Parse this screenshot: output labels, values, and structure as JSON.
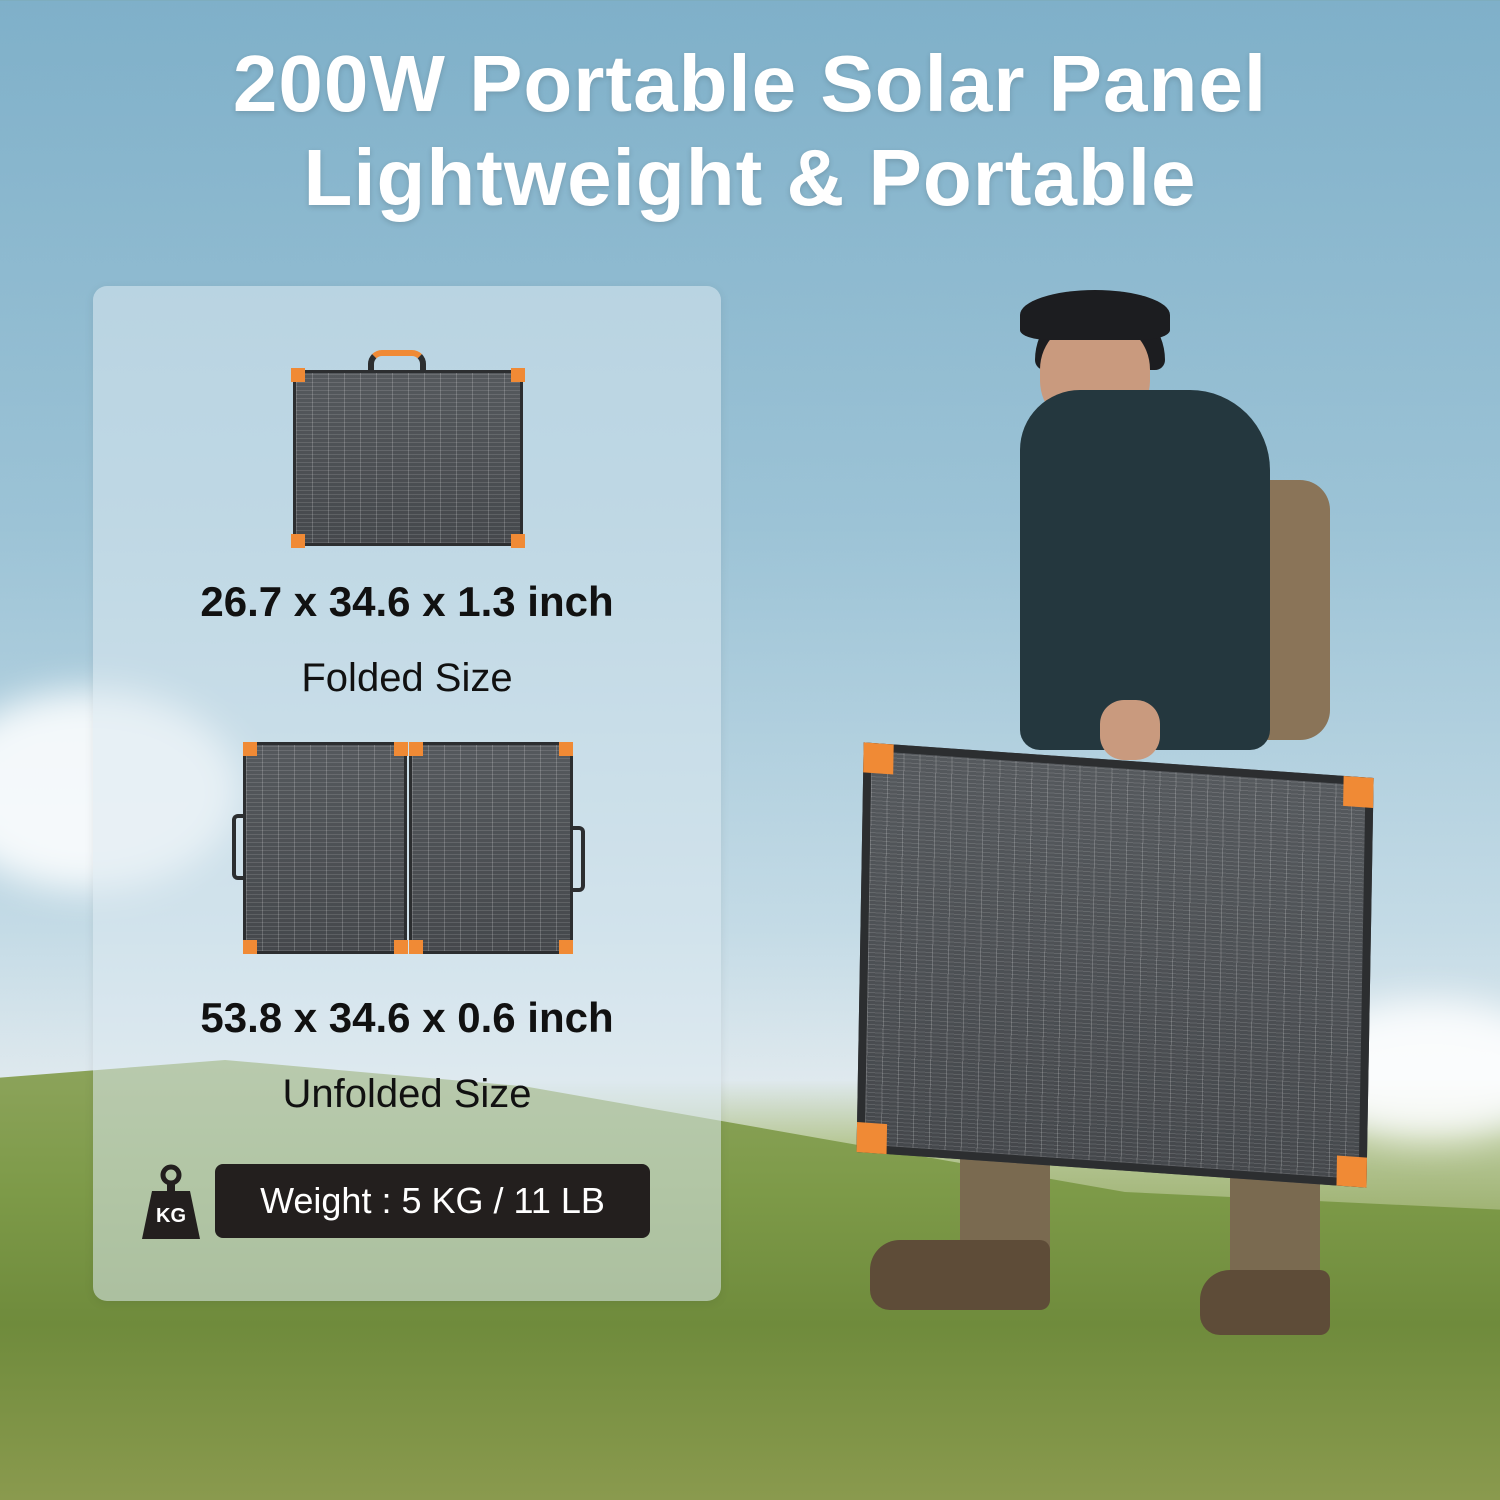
{
  "headline": {
    "line1": "200W Portable Solar Panel",
    "line2": "Lightweight & Portable"
  },
  "specs": {
    "folded_dimensions": "26.7 x 34.6 x 1.3 inch",
    "folded_label": "Folded Size",
    "unfolded_dimensions": "53.8 x 34.6 x 0.6 inch",
    "unfolded_label": "Unfolded Size",
    "weight": "Weight : 5 KG / 11 LB",
    "weight_icon_text": "KG"
  },
  "colors": {
    "accent": "#f08a35",
    "badge": "#231f1e",
    "panel": "#4f5256"
  },
  "icons": [
    "kettlebell-weight-icon"
  ]
}
